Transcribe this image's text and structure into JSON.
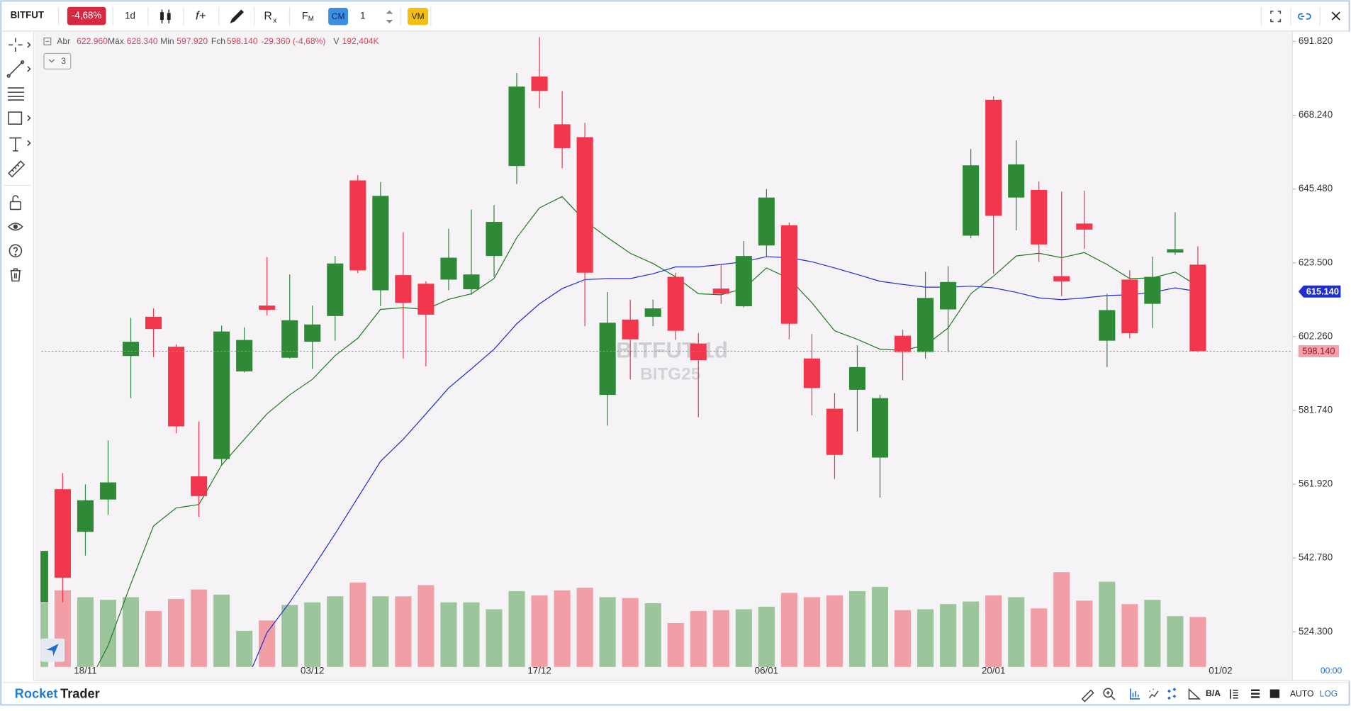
{
  "toolbar": {
    "symbol": "BITFUT",
    "change": "-4,68%",
    "interval": "1d",
    "function": "f+",
    "indicator_r": "R",
    "indicator_r_sub": "x",
    "indicator_f": "F",
    "indicator_f_sub": "M",
    "cm": "CM",
    "quantity": "1",
    "vm": "VM"
  },
  "legend": {
    "open_label": "Abr",
    "open": "622.960",
    "high_label": "Máx",
    "high": "628.340",
    "low_label": "Min",
    "low": "597.920",
    "close_label": "Fch",
    "close": "598.140",
    "change": "-29.360 (-4,68%)",
    "volume_label": "V",
    "volume": "192,404K",
    "collapsed_count": "3"
  },
  "chart_data": {
    "type": "candlestick",
    "log": true,
    "grid": false,
    "watermark_symbol": "BITFUT 1d",
    "watermark_contract": "BITG25",
    "time_label": "00:00",
    "categories": [
      null,
      null,
      "18/11",
      null,
      null,
      null,
      null,
      null,
      null,
      null,
      null,
      null,
      "03/12",
      null,
      null,
      null,
      null,
      null,
      null,
      null,
      null,
      null,
      "17/12",
      null,
      null,
      null,
      null,
      null,
      null,
      null,
      null,
      null,
      "06/01",
      null,
      null,
      null,
      null,
      null,
      null,
      null,
      null,
      null,
      "20/01",
      null,
      null,
      null,
      null,
      null,
      null,
      null,
      null,
      null,
      "01/02"
    ],
    "open": [
      531.6,
      560.6,
      549.5,
      557.9,
      596.8,
      607.9,
      599.4,
      564.0,
      568.6,
      592.5,
      611.1,
      596.3,
      600.8,
      608.1,
      648.1,
      615.5,
      619.9,
      617.4,
      618.6,
      615.8,
      625.5,
      652.5,
      680.5,
      665.4,
      661.4,
      586.0,
      607.1,
      607.9,
      619.4,
      600.3,
      616.0,
      610.9,
      628.6,
      634.6,
      596.1,
      582.2,
      587.4,
      569.0,
      602.5,
      597.9,
      610.0,
      631.5,
      673.1,
      642.9,
      645.2,
      619.6,
      635.1,
      601.1,
      618.6,
      611.6,
      626.5,
      622.96,
      null
    ],
    "high": [
      545.0,
      564.9,
      561.9,
      573.6,
      607.6,
      610.3,
      600.1,
      578.7,
      605.4,
      604.9,
      625.2,
      620.1,
      611.1,
      625.5,
      649.7,
      647.6,
      632.5,
      618.1,
      633.6,
      639.3,
      640.6,
      681.6,
      693.2,
      675.9,
      665.9,
      615.0,
      612.8,
      612.8,
      620.6,
      603.2,
      622.8,
      629.9,
      645.5,
      635.4,
      603.0,
      586.5,
      599.8,
      586.0,
      604.2,
      620.9,
      622.5,
      657.7,
      674.2,
      660.4,
      647.8,
      644.7,
      645.0,
      614.5,
      621.3,
      625.3,
      638.5,
      628.34,
      null
    ],
    "low": [
      529.0,
      531.6,
      543.4,
      553.9,
      585.1,
      596.5,
      575.5,
      553.4,
      567.0,
      592.2,
      608.3,
      596.1,
      593.2,
      601.1,
      620.5,
      610.9,
      596.1,
      593.9,
      615.5,
      614.2,
      619.4,
      647.0,
      670.5,
      651.8,
      605.2,
      577.6,
      590.3,
      605.2,
      601.3,
      579.9,
      611.6,
      610.6,
      625.3,
      601.5,
      580.4,
      563.3,
      576.0,
      558.4,
      590.0,
      596.1,
      597.9,
      630.7,
      620.3,
      633.1,
      623.8,
      613.8,
      627.6,
      593.7,
      601.8,
      604.7,
      625.8,
      597.92,
      null
    ],
    "close": [
      544.6,
      537.8,
      557.7,
      562.4,
      600.8,
      604.4,
      577.4,
      558.8,
      603.7,
      601.3,
      609.9,
      606.9,
      605.7,
      623.3,
      621.3,
      643.4,
      611.9,
      608.5,
      625.0,
      620.1,
      635.6,
      677.3,
      675.9,
      658.0,
      620.6,
      606.2,
      601.5,
      610.3,
      603.9,
      595.6,
      614.5,
      625.5,
      642.9,
      605.9,
      587.9,
      569.7,
      593.7,
      585.1,
      597.9,
      613.3,
      617.9,
      652.7,
      637.4,
      653.0,
      628.9,
      618.1,
      633.3,
      609.8,
      603.2,
      619.4,
      627.5,
      598.14,
      null
    ],
    "volume": [
      245.5,
      295.2,
      268.7,
      258.7,
      268.7,
      215.6,
      262.0,
      298.5,
      278.6,
      139.3,
      179.1,
      238.8,
      248.8,
      272.0,
      325.1,
      272.0,
      272.0,
      315.1,
      248.8,
      248.8,
      222.2,
      291.9,
      275.3,
      295.2,
      305.2,
      268.7,
      265.4,
      245.5,
      169.2,
      215.6,
      218.9,
      222.2,
      232.2,
      285.3,
      268.7,
      275.3,
      291.9,
      308.5,
      218.9,
      222.2,
      242.1,
      252.1,
      275.3,
      268.7,
      225.6,
      364.9,
      255.4,
      328.4,
      242.1,
      258.7,
      195.7,
      192.404,
      null
    ],
    "up_color": "#2f8a37",
    "down_color": "#f2364c",
    "volume_up_color": "#9cc59c",
    "volume_down_color": "#f29ea6",
    "ma": [
      {
        "color": "#1e7a22",
        "values": [
          null,
          null,
          510.3,
          520.9,
          536.2,
          551.0,
          555.7,
          556.6,
          567.0,
          573.9,
          580.8,
          586.0,
          590.3,
          596.9,
          601.8,
          610.0,
          610.5,
          610.0,
          612.9,
          614.5,
          618.9,
          630.9,
          639.8,
          643.2,
          635.9,
          630.9,
          626.3,
          623.3,
          619.4,
          614.5,
          614.2,
          616.0,
          622.0,
          618.9,
          611.9,
          603.9,
          601.5,
          598.7,
          598.4,
          599.8,
          604.7,
          614.5,
          619.6,
          625.5,
          626.3,
          625.0,
          626.5,
          623.0,
          618.9,
          619.1,
          620.8,
          616.7,
          null
        ]
      },
      {
        "color": "#1f2fcf",
        "values": [
          null,
          null,
          null,
          null,
          null,
          null,
          null,
          null,
          null,
          511.0,
          524.1,
          531.6,
          540.1,
          549.0,
          558.4,
          568.0,
          573.9,
          580.8,
          587.9,
          593.2,
          598.7,
          605.9,
          611.6,
          616.0,
          618.6,
          618.9,
          618.9,
          620.3,
          622.3,
          622.3,
          623.0,
          623.8,
          625.3,
          625.0,
          623.8,
          622.0,
          620.1,
          618.1,
          617.2,
          616.4,
          616.4,
          616.7,
          616.2,
          614.9,
          613.3,
          612.8,
          613.3,
          614.0,
          614.2,
          614.9,
          616.2,
          615.14,
          null
        ]
      }
    ],
    "price_badges": [
      {
        "label": "615.140",
        "color": "#1f2fcf",
        "text_color": "#ffffff"
      },
      {
        "label": "598.140",
        "color": "#f4a3ab",
        "text_color": "#9a1020"
      }
    ],
    "ylim": [
      515.7,
      694.9
    ],
    "yticks": [
      {
        "value": 691.82,
        "label": "691.820"
      },
      {
        "value": 668.24,
        "label": "668.240"
      },
      {
        "value": 645.48,
        "label": "645.480"
      },
      {
        "value": 623.5,
        "label": "623.500"
      },
      {
        "value": 602.26,
        "label": "602.260"
      },
      {
        "value": 581.74,
        "label": "581.740"
      },
      {
        "value": 561.92,
        "label": "561.920"
      },
      {
        "value": 542.78,
        "label": "542.780"
      },
      {
        "value": 524.3,
        "label": "524.300"
      }
    ]
  },
  "footer": {
    "brand_1": "Rocket",
    "brand_2": "Trader",
    "bid_ask": "B/A",
    "auto": "AUTO",
    "log": "LOG"
  }
}
